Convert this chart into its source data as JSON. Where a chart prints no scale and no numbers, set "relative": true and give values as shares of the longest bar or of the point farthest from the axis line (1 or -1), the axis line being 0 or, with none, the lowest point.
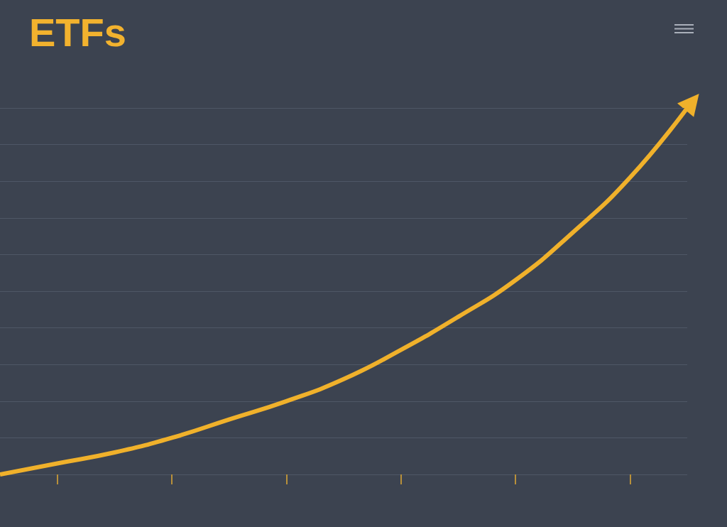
{
  "chart_data": {
    "type": "line",
    "title": "ETFs",
    "categories": [
      null,
      null,
      null,
      null,
      null,
      null,
      null,
      null,
      null,
      null,
      null,
      null,
      null
    ],
    "values": [
      0,
      0.03,
      0.06,
      0.1,
      0.15,
      0.2,
      0.26,
      0.34,
      0.43,
      0.53,
      0.66,
      0.81,
      1
    ],
    "color": "#f0b12b",
    "relative": true,
    "grid": "y"
  }
}
